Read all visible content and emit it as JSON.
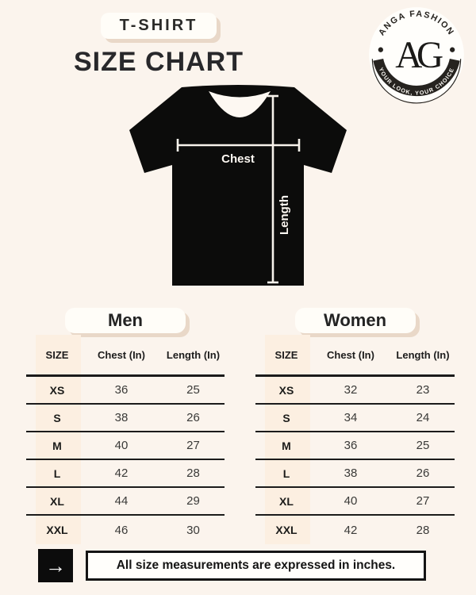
{
  "header": {
    "badge": "T-SHIRT",
    "title": "SIZE CHART"
  },
  "logo": {
    "brand_top": "ANGA FASHION",
    "monogram": "AG",
    "tagline": "YOUR LOOK, YOUR CHOICE"
  },
  "diagram": {
    "chest_label": "Chest",
    "length_label": "Length"
  },
  "tables": {
    "men": {
      "title": "Men",
      "columns": [
        "SIZE",
        "Chest (In)",
        "Length (In)"
      ],
      "rows": [
        [
          "XS",
          "36",
          "25"
        ],
        [
          "S",
          "38",
          "26"
        ],
        [
          "M",
          "40",
          "27"
        ],
        [
          "L",
          "42",
          "28"
        ],
        [
          "XL",
          "44",
          "29"
        ],
        [
          "XXL",
          "46",
          "30"
        ]
      ]
    },
    "women": {
      "title": "Women",
      "columns": [
        "SIZE",
        "Chest (In)",
        "Length (In)"
      ],
      "rows": [
        [
          "XS",
          "32",
          "23"
        ],
        [
          "S",
          "34",
          "24"
        ],
        [
          "M",
          "36",
          "25"
        ],
        [
          "L",
          "38",
          "26"
        ],
        [
          "XL",
          "40",
          "27"
        ],
        [
          "XXL",
          "42",
          "28"
        ]
      ]
    }
  },
  "footer": {
    "arrow_icon": "→",
    "note": "All size measurements are expressed in inches."
  },
  "colors": {
    "background": "#fbf4ed",
    "card": "#fffdf8",
    "card_shadow": "#e9d8c8",
    "size_column_tint": "#fcefe1",
    "ink": "#1b1b1b",
    "shirt": "#0c0c0b",
    "measure_line": "#f8f3ec"
  }
}
